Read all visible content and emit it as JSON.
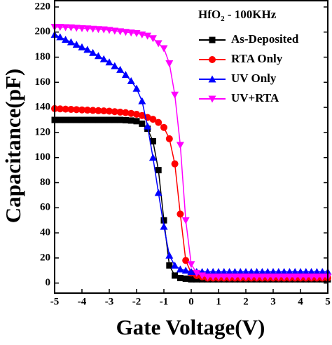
{
  "chart_data": {
    "type": "line",
    "xlabel": "Gate Voltage(V)",
    "ylabel": "Capacitance(pF)",
    "legend_title_parts": [
      "HfO",
      "2",
      " - 100KHz"
    ],
    "legend": "upper right",
    "xlim": [
      -5,
      5
    ],
    "ylim": [
      -8,
      225
    ],
    "xticks": [
      -5,
      -4,
      -3,
      -2,
      -1,
      0,
      1,
      2,
      3,
      4,
      5
    ],
    "yticks": [
      0,
      20,
      40,
      60,
      80,
      100,
      120,
      140,
      160,
      180,
      200,
      220
    ],
    "x": [
      -5,
      -4.8,
      -4.6,
      -4.4,
      -4.2,
      -4,
      -3.8,
      -3.6,
      -3.4,
      -3.2,
      -3,
      -2.8,
      -2.6,
      -2.4,
      -2.2,
      -2,
      -1.8,
      -1.6,
      -1.4,
      -1.2,
      -1,
      -0.8,
      -0.6,
      -0.4,
      -0.2,
      0,
      0.2,
      0.4,
      0.6,
      0.8,
      1,
      1.2,
      1.4,
      1.6,
      1.8,
      2,
      2.2,
      2.4,
      2.6,
      2.8,
      3,
      3.2,
      3.4,
      3.6,
      3.8,
      4,
      4.2,
      4.4,
      4.6,
      4.8,
      5
    ],
    "series": [
      {
        "name": "As-Deposited",
        "color": "#000000",
        "marker": "square",
        "values": [
          130,
          130,
          130,
          130,
          130,
          130,
          130,
          130,
          130,
          130,
          130,
          130,
          130,
          129.8,
          129.5,
          129,
          127,
          123,
          113,
          90,
          50,
          14,
          6,
          4,
          3.5,
          3,
          3,
          3,
          3,
          3,
          3,
          3,
          3,
          3,
          3,
          3,
          3,
          3,
          3,
          3,
          3,
          3,
          3,
          3,
          3,
          3,
          3,
          3,
          3,
          3,
          3
        ]
      },
      {
        "name": "RTA Only",
        "color": "#ff0000",
        "marker": "circle",
        "values": [
          139,
          138.8,
          138.6,
          138.4,
          138.2,
          138,
          137.8,
          137.6,
          137.4,
          137.2,
          137,
          136.6,
          136.2,
          135.8,
          135.2,
          134.5,
          133.5,
          132,
          130.5,
          128,
          124,
          115,
          95,
          55,
          18,
          8,
          6,
          5,
          4,
          4,
          4,
          4,
          4,
          4,
          4,
          4,
          4,
          4,
          4,
          4,
          4,
          4,
          4,
          4,
          4,
          4,
          4,
          4,
          4,
          4,
          4
        ]
      },
      {
        "name": "UV Only",
        "color": "#0000ff",
        "marker": "triangle-up",
        "values": [
          198,
          196,
          194,
          192,
          190,
          188,
          186,
          183.5,
          181,
          178.5,
          176,
          173,
          170,
          166,
          161,
          155,
          145,
          125,
          100,
          72,
          45,
          22,
          14,
          11,
          10,
          9,
          9,
          9,
          9,
          9,
          9,
          9,
          9,
          9,
          9,
          9,
          9,
          9,
          9,
          9,
          9,
          9,
          9,
          9,
          9,
          9,
          9,
          9,
          9,
          9,
          9
        ]
      },
      {
        "name": "UV+RTA",
        "color": "#ff00ff",
        "marker": "triangle-down",
        "values": [
          204,
          204,
          203.8,
          203.6,
          203.3,
          203,
          202.8,
          202.5,
          202.2,
          202,
          201.5,
          201,
          200.5,
          200,
          199.5,
          199,
          198,
          197,
          195,
          191,
          187,
          175,
          150,
          110,
          50,
          15,
          8,
          6,
          5,
          5,
          5,
          5,
          5,
          5,
          5,
          5,
          5,
          5,
          5,
          5,
          5,
          5,
          5,
          5,
          5,
          5,
          5,
          5,
          5,
          5,
          5
        ]
      }
    ]
  }
}
